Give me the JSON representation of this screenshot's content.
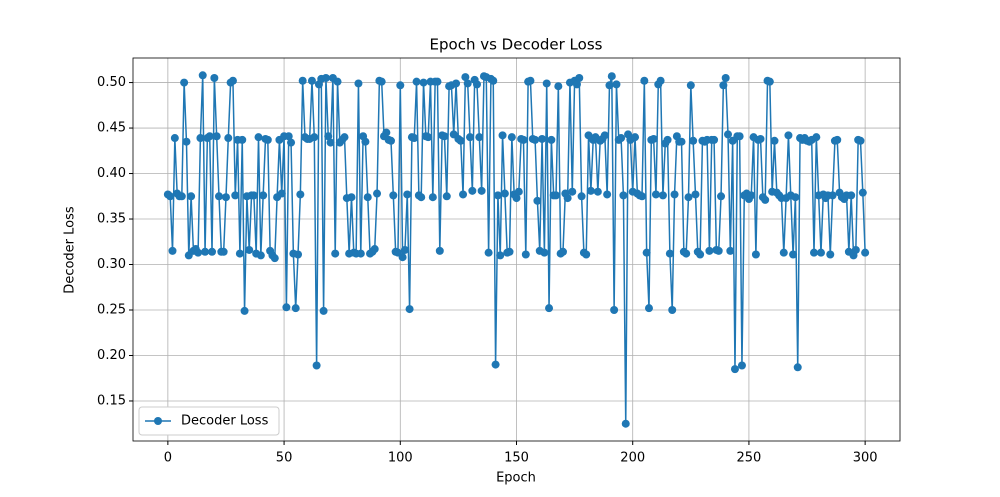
{
  "chart_data": {
    "type": "line",
    "title": "Epoch vs Decoder Loss",
    "x_label": "Epoch",
    "y_label": "Decoder Loss",
    "x": [
      0,
      1,
      2,
      3,
      4,
      5,
      6,
      7,
      8,
      9,
      10,
      11,
      12,
      13,
      14,
      15,
      16,
      17,
      18,
      19,
      20,
      21,
      22,
      23,
      24,
      25,
      26,
      27,
      28,
      29,
      30,
      31,
      32,
      33,
      34,
      35,
      36,
      37,
      38,
      39,
      40,
      41,
      42,
      43,
      44,
      45,
      46,
      47,
      48,
      49,
      50,
      51,
      52,
      53,
      54,
      55,
      56,
      57,
      58,
      59,
      60,
      61,
      62,
      63,
      64,
      65,
      66,
      67,
      68,
      69,
      70,
      71,
      72,
      73,
      74,
      75,
      76,
      77,
      78,
      79,
      80,
      81,
      82,
      83,
      84,
      85,
      86,
      87,
      88,
      89,
      90,
      91,
      92,
      93,
      94,
      95,
      96,
      97,
      98,
      99,
      100,
      101,
      102,
      103,
      104,
      105,
      106,
      107,
      108,
      109,
      110,
      111,
      112,
      113,
      114,
      115,
      116,
      117,
      118,
      119,
      120,
      121,
      122,
      123,
      124,
      125,
      126,
      127,
      128,
      129,
      130,
      131,
      132,
      133,
      134,
      135,
      136,
      137,
      138,
      139,
      140,
      141,
      142,
      143,
      144,
      145,
      146,
      147,
      148,
      149,
      150,
      151,
      152,
      153,
      154,
      155,
      156,
      157,
      158,
      159,
      160,
      161,
      162,
      163,
      164,
      165,
      166,
      167,
      168,
      169,
      170,
      171,
      172,
      173,
      174,
      175,
      176,
      177,
      178,
      179,
      180,
      181,
      182,
      183,
      184,
      185,
      186,
      187,
      188,
      189,
      190,
      191,
      192,
      193,
      194,
      195,
      196,
      197,
      198,
      199,
      200,
      201,
      202,
      203,
      204,
      205,
      206,
      207,
      208,
      209,
      210,
      211,
      212,
      213,
      214,
      215,
      216,
      217,
      218,
      219,
      220,
      221,
      222,
      223,
      224,
      225,
      226,
      227,
      228,
      229,
      230,
      231,
      232,
      233,
      234,
      235,
      236,
      237,
      238,
      239,
      240,
      241,
      242,
      243,
      244,
      245,
      246,
      247,
      248,
      249,
      250,
      251,
      252,
      253,
      254,
      255,
      256,
      257,
      258,
      259,
      260,
      261,
      262,
      263,
      264,
      265,
      266,
      267,
      268,
      269,
      270,
      271,
      272,
      273,
      274,
      275,
      276,
      277,
      278,
      279,
      280,
      281,
      282,
      283,
      284,
      285,
      286,
      287,
      288,
      289,
      290,
      291,
      292,
      293,
      294,
      295,
      296,
      297,
      298,
      299,
      300
    ],
    "series": [
      {
        "name": "Decoder Loss",
        "color": "#1f77b4",
        "values": [
          0.377,
          0.375,
          0.315,
          0.439,
          0.378,
          0.375,
          0.375,
          0.5,
          0.435,
          0.31,
          0.375,
          0.315,
          0.317,
          0.313,
          0.439,
          0.508,
          0.314,
          0.439,
          0.441,
          0.314,
          0.505,
          0.441,
          0.375,
          0.314,
          0.314,
          0.374,
          0.439,
          0.5,
          0.502,
          0.376,
          0.437,
          0.312,
          0.437,
          0.249,
          0.375,
          0.316,
          0.376,
          0.376,
          0.312,
          0.44,
          0.31,
          0.376,
          0.438,
          0.437,
          0.315,
          0.31,
          0.307,
          0.374,
          0.437,
          0.378,
          0.441,
          0.253,
          0.441,
          0.434,
          0.312,
          0.252,
          0.311,
          0.377,
          0.502,
          0.44,
          0.438,
          0.438,
          0.502,
          0.44,
          0.189,
          0.498,
          0.504,
          0.249,
          0.505,
          0.441,
          0.434,
          0.505,
          0.312,
          0.501,
          0.434,
          0.437,
          0.44,
          0.373,
          0.312,
          0.374,
          0.313,
          0.312,
          0.499,
          0.312,
          0.441,
          0.435,
          0.374,
          0.312,
          0.314,
          0.317,
          0.378,
          0.502,
          0.501,
          0.441,
          0.445,
          0.437,
          0.436,
          0.376,
          0.314,
          0.313,
          0.497,
          0.308,
          0.316,
          0.377,
          0.251,
          0.44,
          0.439,
          0.501,
          0.376,
          0.374,
          0.5,
          0.441,
          0.44,
          0.501,
          0.374,
          0.501,
          0.501,
          0.315,
          0.442,
          0.441,
          0.375,
          0.496,
          0.497,
          0.443,
          0.499,
          0.438,
          0.436,
          0.377,
          0.506,
          0.499,
          0.44,
          0.381,
          0.503,
          0.498,
          0.44,
          0.381,
          0.507,
          0.506,
          0.313,
          0.504,
          0.502,
          0.19,
          0.376,
          0.31,
          0.442,
          0.378,
          0.313,
          0.314,
          0.44,
          0.377,
          0.373,
          0.38,
          0.438,
          0.437,
          0.311,
          0.501,
          0.502,
          0.438,
          0.437,
          0.37,
          0.315,
          0.438,
          0.313,
          0.499,
          0.252,
          0.437,
          0.376,
          0.376,
          0.496,
          0.312,
          0.314,
          0.378,
          0.373,
          0.5,
          0.38,
          0.502,
          0.498,
          0.505,
          0.375,
          0.313,
          0.311,
          0.442,
          0.381,
          0.437,
          0.44,
          0.38,
          0.436,
          0.438,
          0.442,
          0.377,
          0.497,
          0.507,
          0.25,
          0.498,
          0.437,
          0.439,
          0.376,
          0.125,
          0.443,
          0.437,
          0.38,
          0.44,
          0.378,
          0.376,
          0.375,
          0.502,
          0.313,
          0.252,
          0.437,
          0.438,
          0.377,
          0.498,
          0.502,
          0.376,
          0.433,
          0.437,
          0.312,
          0.25,
          0.377,
          0.441,
          0.435,
          0.435,
          0.314,
          0.312,
          0.374,
          0.497,
          0.436,
          0.377,
          0.314,
          0.311,
          0.436,
          0.435,
          0.437,
          0.315,
          0.437,
          0.437,
          0.316,
          0.315,
          0.375,
          0.497,
          0.505,
          0.443,
          0.315,
          0.436,
          0.185,
          0.441,
          0.441,
          0.189,
          0.376,
          0.378,
          0.372,
          0.376,
          0.44,
          0.311,
          0.437,
          0.438,
          0.374,
          0.371,
          0.502,
          0.501,
          0.38,
          0.436,
          0.379,
          0.376,
          0.373,
          0.313,
          0.373,
          0.442,
          0.376,
          0.311,
          0.374,
          0.187,
          0.439,
          0.437,
          0.439,
          0.436,
          0.435,
          0.437,
          0.313,
          0.44,
          0.376,
          0.313,
          0.377,
          0.373,
          0.376,
          0.311,
          0.376,
          0.436,
          0.437,
          0.379,
          0.374,
          0.372,
          0.376,
          0.314,
          0.376,
          0.31,
          0.316,
          0.437,
          0.436,
          0.379,
          0.313
        ]
      }
    ],
    "xlim": [
      -15,
      315
    ],
    "xticks": [
      0,
      50,
      100,
      150,
      200,
      250,
      300
    ],
    "ylim": [
      0.106,
      0.527
    ],
    "yticks": [
      0.15,
      {
        "value": 0.2,
        "label": "0.20"
      },
      0.25,
      {
        "value": 0.3,
        "label": "0.30"
      },
      0.35,
      {
        "value": 0.4,
        "label": "0.40"
      },
      0.45,
      {
        "value": 0.5,
        "label": "0.50"
      }
    ],
    "grid": true,
    "legend": "lower left"
  }
}
